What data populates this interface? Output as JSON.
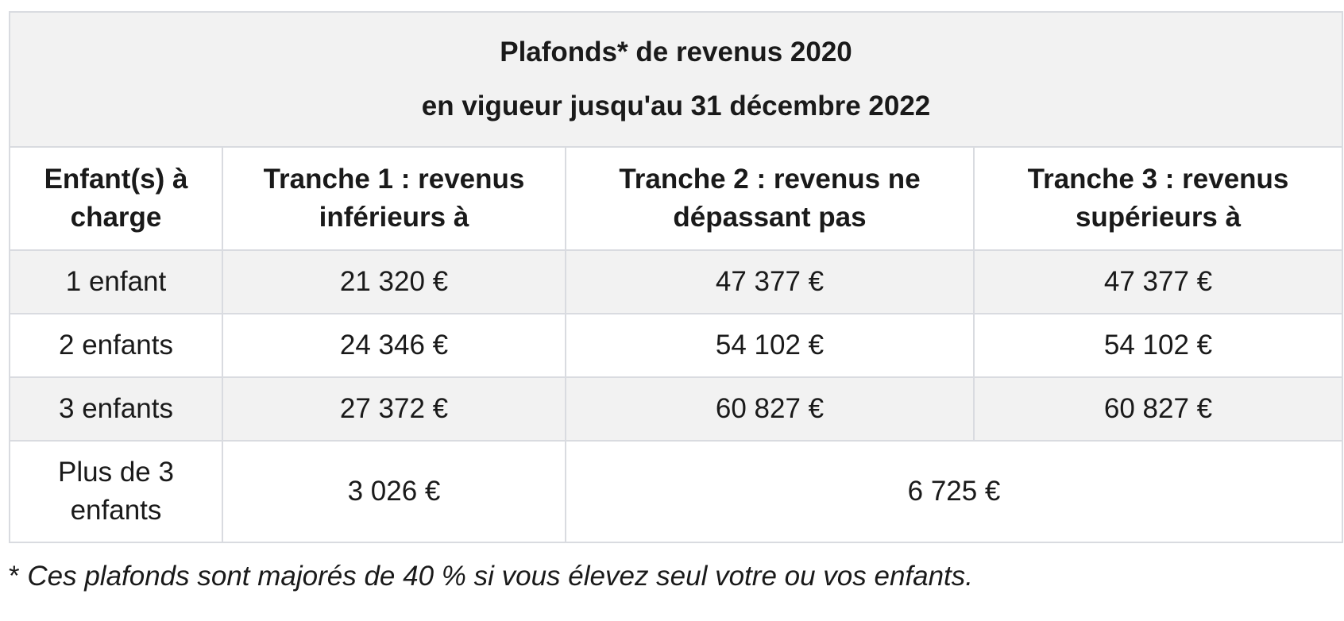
{
  "table": {
    "title_line1": "Plafonds* de revenus 2020",
    "title_line2": "en vigueur jusqu'au 31 décembre 2022",
    "headers": [
      "Enfant(s) à charge",
      "Tranche 1 : revenus inférieurs à",
      "Tranche 2 : revenus ne dépassant pas",
      "Tranche 3 : revenus supérieurs à"
    ],
    "rows": [
      {
        "children": "1 enfant",
        "t1": "21 320 €",
        "t2": "47 377 €",
        "t3": "47 377 €"
      },
      {
        "children": "2 enfants",
        "t1": "24 346 €",
        "t2": "54 102 €",
        "t3": "54 102 €"
      },
      {
        "children": "3 enfants",
        "t1": "27 372 €",
        "t2": "60 827 €",
        "t3": "60 827 €"
      }
    ],
    "last_row": {
      "children": "Plus de 3 enfants",
      "t1": "3 026 €",
      "t2_t3": "6 725 €"
    },
    "header_background": "#f2f2f2",
    "border_color": "#d9dbe0"
  },
  "footnote": {
    "star": "*",
    "text": "Ces plafonds sont majorés de 40 % si vous élevez seul votre ou vos enfants."
  }
}
